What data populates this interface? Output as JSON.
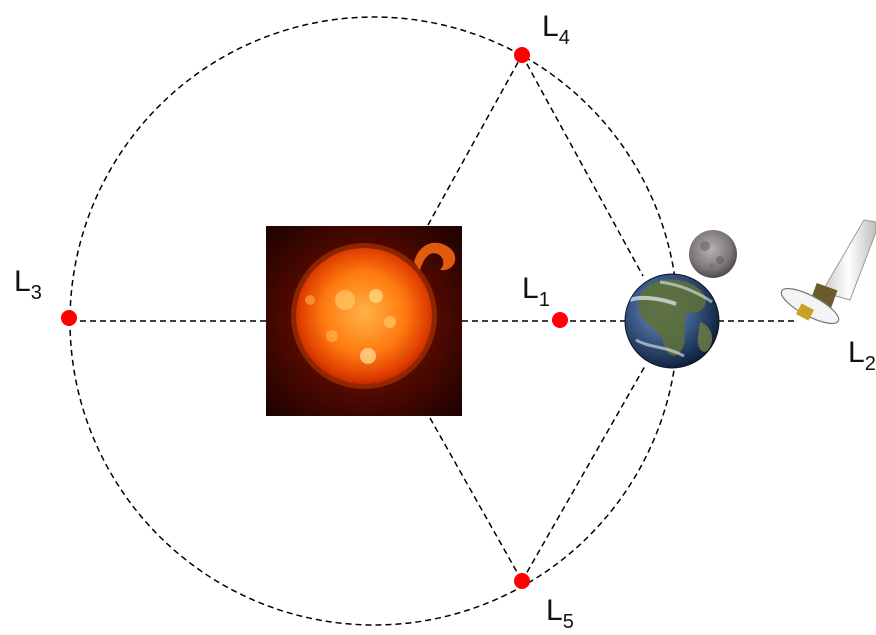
{
  "diagram": {
    "points": [
      {
        "key": "L1",
        "main": "L",
        "sub": "1"
      },
      {
        "key": "L2",
        "main": "L",
        "sub": "2"
      },
      {
        "key": "L3",
        "main": "L",
        "sub": "3"
      },
      {
        "key": "L4",
        "main": "L",
        "sub": "4"
      },
      {
        "key": "L5",
        "main": "L",
        "sub": "5"
      }
    ],
    "bodies": [
      "sun",
      "earth",
      "moon",
      "telescope"
    ],
    "colors": {
      "point": "#ff0000",
      "line": "#000000",
      "sun_bg": "#2a0400",
      "sun_core": "#ff9a1a",
      "sun_edge": "#d83a00",
      "earth_ocean": "#2c4a7a",
      "earth_land": "#5d6f3a",
      "moon": "#8a8386"
    }
  }
}
